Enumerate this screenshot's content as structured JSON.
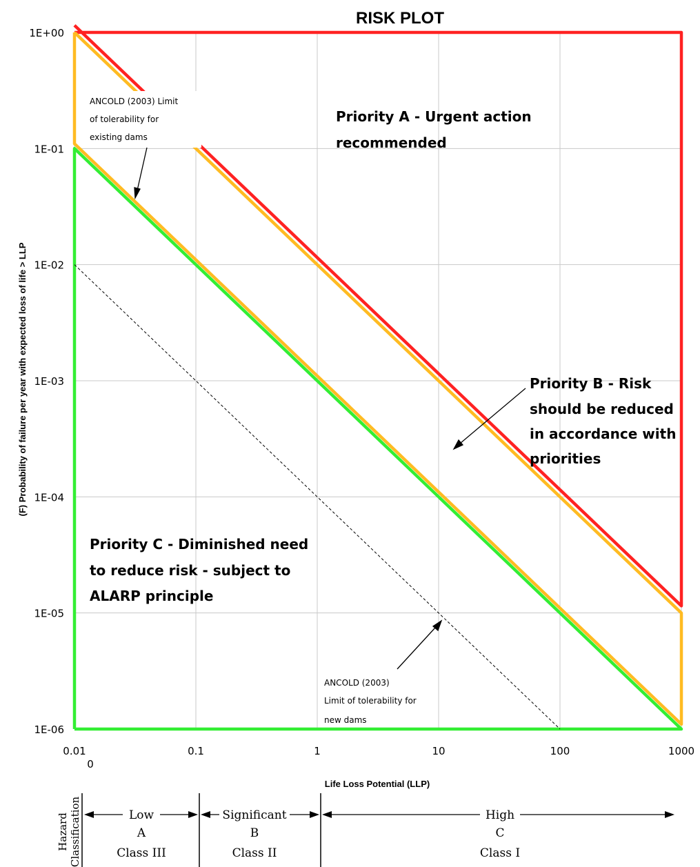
{
  "chart_data": {
    "type": "line",
    "title": "RISK PLOT",
    "xlabel": "Life Loss Potential (LLP)",
    "ylabel": "(F) Probability of failure per year with expected loss of life > LLP",
    "xscale": "log",
    "yscale": "log",
    "xlim": [
      0.01,
      1000
    ],
    "ylim": [
      1e-06,
      1
    ],
    "grid": true,
    "x_tick_labels": [
      "0.01",
      "0.1",
      "1",
      "10",
      "100",
      "1000"
    ],
    "x_extra_label": "0",
    "y_tick_labels": [
      "1E+00",
      "1E-01",
      "1E-02",
      "1E-03",
      "1E-04",
      "1E-05",
      "1E-06"
    ],
    "series": [
      {
        "color": "#ff2222",
        "points": [
          [
            0.01,
            1
          ],
          [
            1000,
            1
          ],
          [
            1000,
            1.15e-05
          ],
          [
            0.01,
            1.15
          ]
        ]
      },
      {
        "color": "#ffbb22",
        "points": [
          [
            0.01,
            1
          ],
          [
            1000,
            1e-05
          ],
          [
            1000,
            1.1e-06
          ],
          [
            0.01,
            0.11
          ],
          [
            0.01,
            1
          ]
        ]
      },
      {
        "color": "#33ee33",
        "points": [
          [
            0.01,
            1e-06
          ],
          [
            1000,
            1e-06
          ],
          [
            0.01,
            0.1
          ],
          [
            0.01,
            1e-06
          ]
        ]
      },
      {
        "color": "#000000",
        "dashed": true,
        "points": [
          [
            0.01,
            0.01
          ],
          [
            100,
            1e-06
          ]
        ]
      }
    ],
    "annotations": {
      "priority_a": [
        "Priority A - Urgent action",
        "recommended"
      ],
      "priority_b": [
        "Priority B - Risk",
        "should be reduced",
        "in accordance with",
        "priorities"
      ],
      "priority_c": [
        "Priority C - Diminished need",
        "to reduce risk - subject to",
        "ALARP principle"
      ],
      "existing_limit": [
        "ANCOLD (2003) Limit",
        "of tolerability for",
        "existing dams"
      ],
      "new_limit": [
        "ANCOLD (2003)",
        "Limit of tolerability for",
        "new dams"
      ]
    }
  },
  "hazard": {
    "label": [
      "Hazard",
      "Classification"
    ],
    "low": {
      "name": "Low",
      "letter": "A",
      "cls": "Class III"
    },
    "significant": {
      "name": "Significant",
      "letter": "B",
      "cls": "Class II"
    },
    "high": {
      "name": "High",
      "letter": "C",
      "cls": "Class I"
    }
  },
  "colors": {
    "red": "#ff2222",
    "orange": "#ffbb22",
    "green": "#33ee33",
    "grid": "#c8c8c8"
  }
}
